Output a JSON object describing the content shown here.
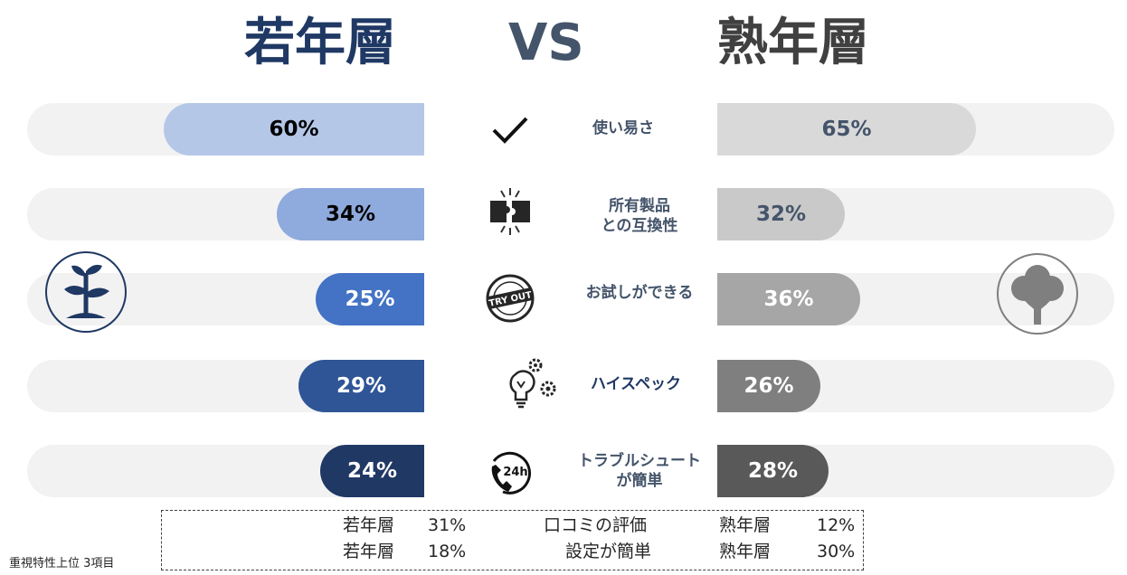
{
  "header": {
    "left": "若年層",
    "vs": "VS",
    "right": "熟年層"
  },
  "chart_data": {
    "type": "bar",
    "categories": [
      "使い易さ",
      "所有製品\nとの互換性",
      "お試しができる",
      "ハイスペック",
      "トラブルシュート\nが簡単"
    ],
    "series": [
      {
        "name": "若年層",
        "values": [
          60,
          34,
          25,
          29,
          24
        ]
      },
      {
        "name": "熟年層",
        "values": [
          65,
          32,
          36,
          26,
          28
        ]
      }
    ],
    "ylim": [
      0,
      100
    ],
    "left_labels": [
      "60%",
      "34%",
      "25%",
      "29%",
      "24%"
    ],
    "right_labels": [
      "65%",
      "32%",
      "36%",
      "26%",
      "28%"
    ],
    "left_colors": [
      "#b4c7e7",
      "#8faadc",
      "#4472c4",
      "#2f5597",
      "#203864"
    ],
    "left_text_colors": [
      "#000000",
      "#000000",
      "#ffffff",
      "#ffffff",
      "#ffffff"
    ],
    "right_colors": [
      "#d9d9d9",
      "#c9c9c9",
      "#a6a6a6",
      "#7f7f7f",
      "#595959"
    ],
    "right_text_colors": [
      "#44546a",
      "#44546a",
      "#ffffff",
      "#ffffff",
      "#ffffff"
    ],
    "icons": [
      "checkmark-icon",
      "puzzle-icon",
      "try-out-stamp-icon",
      "lightbulb-gears-icon",
      "phone-24h-icon"
    ]
  },
  "notes": {
    "rows": [
      {
        "group1": "若年層",
        "value1": "31%",
        "item": "口コミの評価",
        "group2": "熟年層",
        "value2": "12%"
      },
      {
        "group1": "若年層",
        "value1": "18%",
        "item": "設定が簡単",
        "group2": "熟年層",
        "value2": "30%"
      }
    ]
  },
  "footnote": "重視特性上位 3項目",
  "badges": {
    "left_icon": "sprout-icon",
    "right_icon": "tree-icon",
    "left_color": "#1f3864",
    "right_color": "#7f7f7f"
  }
}
